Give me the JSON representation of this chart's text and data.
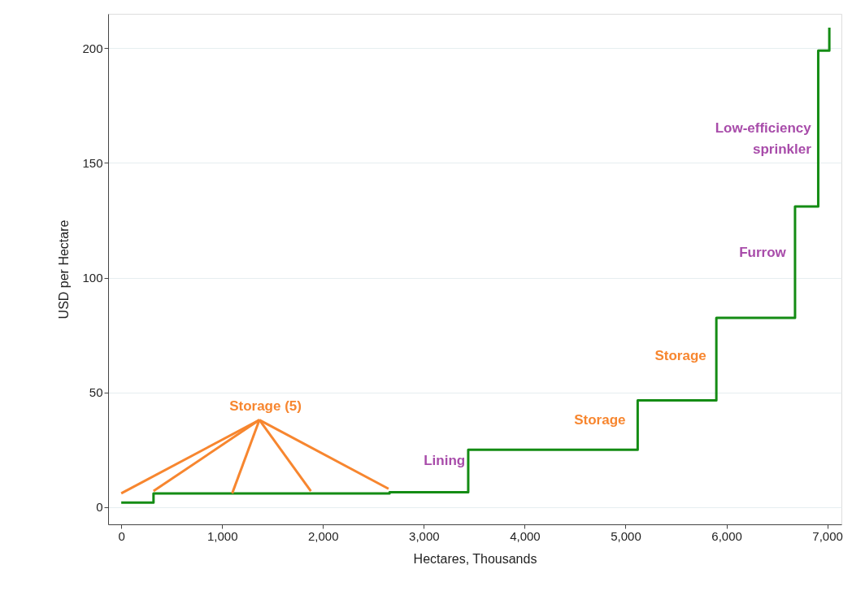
{
  "chart_data": {
    "type": "step",
    "xlabel": "Hectares, Thousands",
    "ylabel": "USD per Hectare",
    "x": [
      0,
      320,
      2660,
      3440,
      5120,
      5900,
      6680,
      6910,
      7020
    ],
    "series": [
      {
        "color": "#148c14",
        "values": [
          2,
          6,
          6.5,
          25,
          46.5,
          82.5,
          131,
          199,
          209
        ]
      }
    ],
    "xlim": [
      -130,
      7140
    ],
    "ylim": [
      -7.5,
      215
    ],
    "xticks": [
      {
        "value": 0,
        "label": "0"
      },
      {
        "value": 1000,
        "label": "1,000"
      },
      {
        "value": 2000,
        "label": "2,000"
      },
      {
        "value": 3000,
        "label": "3,000"
      },
      {
        "value": 4000,
        "label": "4,000"
      },
      {
        "value": 5000,
        "label": "5,000"
      },
      {
        "value": 6000,
        "label": "6,000"
      },
      {
        "value": 7000,
        "label": "7,000"
      }
    ],
    "yticks": [
      0,
      50,
      100,
      150,
      200
    ],
    "grid": "y",
    "marker": "none",
    "line_style": "solid",
    "annotations": [
      {
        "text": "Storage (5)",
        "x": 1100,
        "y": 6
      },
      "Lining",
      "Storage",
      "Storage",
      "Furrow",
      "Low-efficiency\nsprinkler"
    ]
  }
}
